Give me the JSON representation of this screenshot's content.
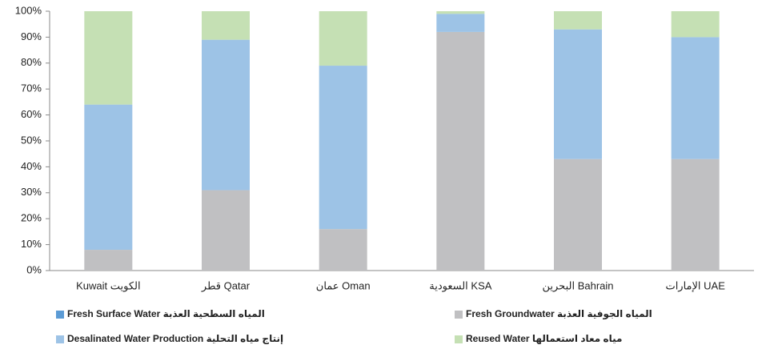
{
  "chart_data": {
    "type": "stacked_bar",
    "categories": [
      "Kuwait الكويت",
      "قطر Qatar",
      "عمان Oman",
      "السعودية KSA",
      "البحرين Bahrain",
      "الإمارات UAE"
    ],
    "series": [
      {
        "name": "Fresh Groundwater المياه الجوفية العذبة",
        "color": "#c0c0c2",
        "values": [
          8,
          31,
          16,
          92,
          43,
          43
        ]
      },
      {
        "name": "Desalinated Water Production  إنتاج مياه التحلية",
        "color": "#9dc3e6",
        "values": [
          56,
          58,
          63,
          7,
          50,
          47
        ]
      },
      {
        "name": "Fresh Surface Water المياه السطحية العذبة",
        "color": "#5b9bd5",
        "values": [
          0,
          0,
          0,
          0,
          0,
          0
        ]
      },
      {
        "name": "Reused Water مياه معاد استعمالها",
        "color": "#c5e0b4",
        "values": [
          36,
          11,
          21,
          1,
          7,
          10
        ]
      }
    ],
    "ylim": [
      0,
      100
    ],
    "yticks": [
      {
        "value": 0,
        "label": "0%"
      },
      {
        "value": 10,
        "label": "10%"
      },
      {
        "value": 20,
        "label": "20%"
      },
      {
        "value": 30,
        "label": "30%"
      },
      {
        "value": 40,
        "label": "40%"
      },
      {
        "value": 50,
        "label": "50%"
      },
      {
        "value": 60,
        "label": "60%"
      },
      {
        "value": 70,
        "label": "70%"
      },
      {
        "value": 80,
        "label": "80%"
      },
      {
        "value": 90,
        "label": "90%"
      },
      {
        "value": 100,
        "label": "100%"
      }
    ]
  }
}
